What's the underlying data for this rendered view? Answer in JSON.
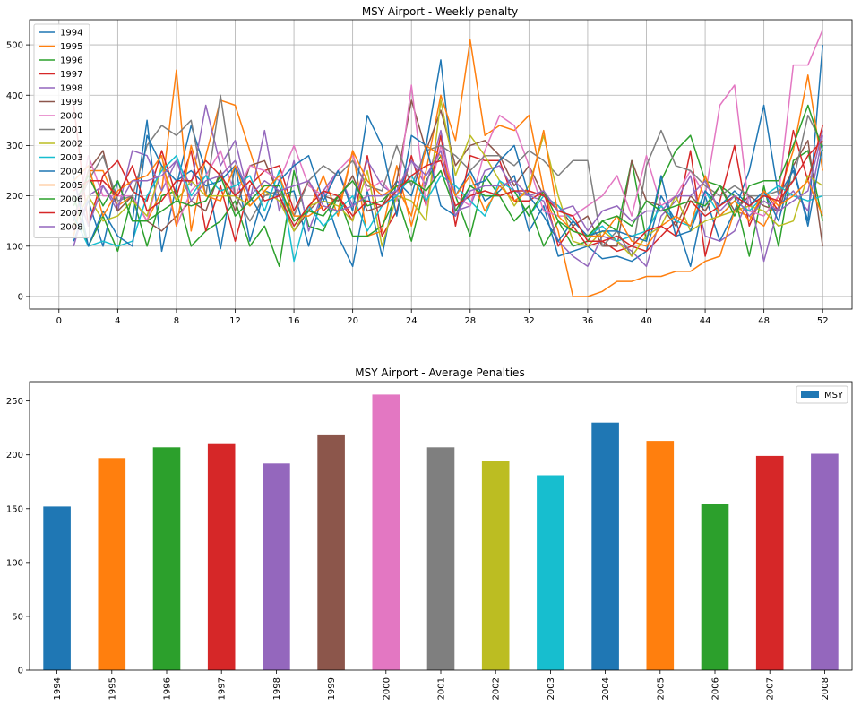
{
  "colors": [
    "#1f77b4",
    "#ff7f0e",
    "#2ca02c",
    "#d62728",
    "#9467bd",
    "#8c564b",
    "#e377c2",
    "#7f7f7f",
    "#bcbd22",
    "#17becf"
  ],
  "chart_data": [
    {
      "type": "line",
      "title": "MSY Airport - Weekly penalty",
      "xlabel": "",
      "ylabel": "",
      "xlim": [
        -2,
        54
      ],
      "ylim": [
        -25,
        550
      ],
      "xticks": [
        0,
        4,
        8,
        12,
        16,
        20,
        24,
        28,
        32,
        36,
        40,
        44,
        48,
        52
      ],
      "yticks": [
        0,
        100,
        200,
        300,
        400,
        500
      ],
      "grid": true,
      "legend": "top-left",
      "x": [
        1,
        2,
        3,
        4,
        5,
        6,
        7,
        8,
        9,
        10,
        11,
        12,
        13,
        14,
        15,
        16,
        17,
        18,
        19,
        20,
        21,
        22,
        23,
        24,
        25,
        26,
        27,
        28,
        29,
        30,
        31,
        32,
        33,
        34,
        35,
        36,
        37,
        38,
        39,
        40,
        41,
        42,
        43,
        44,
        45,
        46,
        47,
        48,
        49,
        50,
        51,
        52
      ],
      "series": [
        {
          "name": "1994",
          "values": [
            110,
            190,
            100,
            230,
            150,
            350,
            90,
            220,
            340,
            250,
            95,
            260,
            110,
            210,
            200,
            210,
            100,
            210,
            120,
            60,
            210,
            80,
            230,
            200,
            300,
            470,
            200,
            250,
            190,
            210,
            240,
            130,
            180,
            80,
            90,
            100,
            75,
            80,
            70,
            90,
            200,
            150,
            60,
            200,
            110,
            170,
            250,
            380,
            200,
            250,
            150,
            500
          ]
        },
        {
          "name": "1995",
          "values": [
            120,
            250,
            250,
            180,
            200,
            150,
            210,
            450,
            130,
            280,
            390,
            380,
            290,
            200,
            210,
            150,
            170,
            240,
            160,
            290,
            120,
            130,
            260,
            140,
            250,
            400,
            310,
            510,
            320,
            340,
            330,
            360,
            210,
            130,
            0,
            0,
            10,
            30,
            30,
            40,
            40,
            50,
            50,
            70,
            80,
            170,
            160,
            140,
            200,
            290,
            440,
            250
          ]
        },
        {
          "name": "1996",
          "values": [
            200,
            100,
            160,
            90,
            200,
            100,
            200,
            210,
            100,
            130,
            150,
            190,
            100,
            140,
            60,
            250,
            140,
            130,
            200,
            120,
            120,
            140,
            200,
            110,
            230,
            280,
            200,
            120,
            240,
            200,
            150,
            180,
            100,
            150,
            100,
            110,
            150,
            130,
            270,
            110,
            230,
            290,
            320,
            230,
            220,
            200,
            80,
            220,
            100,
            270,
            290,
            150
          ]
        },
        {
          "name": "1997",
          "values": [
            380,
            140,
            240,
            270,
            210,
            190,
            290,
            200,
            290,
            130,
            220,
            110,
            220,
            250,
            260,
            170,
            230,
            170,
            200,
            150,
            280,
            120,
            170,
            280,
            180,
            320,
            140,
            280,
            270,
            270,
            190,
            190,
            210,
            100,
            140,
            100,
            110,
            90,
            100,
            90,
            120,
            150,
            290,
            80,
            190,
            300,
            140,
            210,
            170,
            330,
            230,
            340
          ]
        },
        {
          "name": "1998",
          "values": [
            100,
            200,
            220,
            170,
            290,
            280,
            210,
            270,
            220,
            380,
            260,
            310,
            190,
            330,
            170,
            270,
            130,
            210,
            250,
            180,
            270,
            220,
            200,
            270,
            220,
            330,
            170,
            180,
            250,
            260,
            210,
            200,
            190,
            110,
            80,
            60,
            120,
            110,
            90,
            60,
            160,
            190,
            240,
            120,
            110,
            130,
            200,
            70,
            180,
            210,
            170,
            320
          ]
        },
        {
          "name": "1999",
          "values": [
            150,
            250,
            290,
            170,
            200,
            150,
            130,
            160,
            190,
            170,
            250,
            170,
            260,
            270,
            200,
            130,
            170,
            200,
            190,
            240,
            170,
            180,
            230,
            390,
            290,
            370,
            260,
            300,
            310,
            280,
            220,
            260,
            200,
            180,
            140,
            160,
            100,
            100,
            270,
            190,
            180,
            140,
            200,
            170,
            220,
            170,
            200,
            180,
            170,
            260,
            310,
            100
          ]
        },
        {
          "name": "2000",
          "values": [
            130,
            280,
            200,
            200,
            200,
            150,
            260,
            140,
            210,
            240,
            290,
            200,
            260,
            250,
            230,
            300,
            220,
            200,
            250,
            280,
            210,
            230,
            190,
            420,
            180,
            300,
            200,
            180,
            290,
            360,
            340,
            260,
            170,
            160,
            160,
            180,
            200,
            240,
            160,
            280,
            180,
            200,
            250,
            200,
            380,
            420,
            170,
            160,
            200,
            460,
            460,
            530
          ]
        },
        {
          "name": "2001",
          "values": [
            160,
            230,
            280,
            190,
            200,
            300,
            340,
            320,
            350,
            200,
            400,
            200,
            150,
            200,
            210,
            160,
            230,
            260,
            240,
            270,
            220,
            210,
            300,
            220,
            290,
            300,
            280,
            250,
            280,
            280,
            260,
            290,
            270,
            240,
            270,
            270,
            100,
            130,
            80,
            260,
            330,
            260,
            250,
            220,
            200,
            220,
            200,
            200,
            210,
            230,
            360,
            300
          ]
        },
        {
          "name": "2002",
          "values": [
            140,
            200,
            150,
            160,
            190,
            160,
            260,
            190,
            230,
            200,
            200,
            200,
            180,
            210,
            190,
            130,
            180,
            190,
            180,
            150,
            250,
            100,
            200,
            190,
            150,
            390,
            240,
            320,
            280,
            230,
            180,
            220,
            320,
            200,
            110,
            100,
            130,
            110,
            80,
            120,
            140,
            200,
            130,
            150,
            160,
            170,
            180,
            170,
            140,
            150,
            240,
            220
          ]
        },
        {
          "name": "2003",
          "values": [
            160,
            100,
            110,
            100,
            110,
            200,
            250,
            280,
            200,
            240,
            210,
            220,
            240,
            170,
            250,
            70,
            180,
            140,
            170,
            200,
            130,
            180,
            200,
            240,
            190,
            240,
            220,
            190,
            160,
            230,
            210,
            160,
            200,
            180,
            150,
            120,
            140,
            110,
            120,
            130,
            180,
            150,
            140,
            210,
            160,
            190,
            170,
            200,
            220,
            200,
            190,
            200
          ]
        },
        {
          "name": "2004",
          "values": [
            240,
            100,
            170,
            120,
            100,
            320,
            260,
            230,
            250,
            220,
            230,
            260,
            200,
            150,
            230,
            260,
            280,
            190,
            250,
            170,
            360,
            300,
            160,
            320,
            300,
            180,
            160,
            220,
            230,
            270,
            300,
            200,
            160,
            110,
            150,
            120,
            130,
            130,
            120,
            110,
            240,
            120,
            130,
            210,
            180,
            210,
            180,
            210,
            150,
            260,
            140,
            300
          ]
        },
        {
          "name": "2005",
          "values": [
            230,
            260,
            160,
            210,
            230,
            240,
            280,
            140,
            300,
            200,
            190,
            260,
            180,
            210,
            240,
            160,
            160,
            180,
            170,
            290,
            230,
            200,
            220,
            160,
            300,
            280,
            200,
            240,
            170,
            220,
            190,
            210,
            330,
            160,
            130,
            120,
            120,
            160,
            110,
            100,
            140,
            160,
            140,
            240,
            160,
            190,
            150,
            210,
            180,
            200,
            230,
            160
          ]
        },
        {
          "name": "2006",
          "values": [
            180,
            240,
            180,
            230,
            150,
            150,
            170,
            190,
            180,
            190,
            240,
            160,
            190,
            220,
            220,
            150,
            170,
            160,
            200,
            230,
            180,
            190,
            220,
            230,
            210,
            250,
            170,
            220,
            200,
            200,
            210,
            160,
            210,
            150,
            130,
            120,
            150,
            160,
            140,
            190,
            170,
            180,
            190,
            180,
            220,
            160,
            220,
            230,
            230,
            300,
            380,
            290
          ]
        },
        {
          "name": "2007",
          "values": [
            210,
            230,
            230,
            200,
            260,
            170,
            190,
            230,
            230,
            270,
            240,
            200,
            230,
            190,
            200,
            140,
            180,
            210,
            200,
            160,
            190,
            180,
            210,
            240,
            260,
            270,
            180,
            200,
            210,
            200,
            210,
            210,
            200,
            170,
            160,
            110,
            110,
            120,
            100,
            130,
            140,
            120,
            190,
            160,
            180,
            200,
            180,
            200,
            190,
            230,
            280,
            310
          ]
        },
        {
          "name": "2008",
          "values": [
            230,
            140,
            220,
            180,
            230,
            230,
            240,
            270,
            190,
            230,
            240,
            270,
            200,
            230,
            210,
            220,
            230,
            180,
            170,
            180,
            200,
            200,
            210,
            270,
            240,
            290,
            160,
            210,
            220,
            220,
            230,
            200,
            210,
            170,
            180,
            130,
            170,
            180,
            150,
            170,
            170,
            200,
            200,
            230,
            170,
            200,
            160,
            190,
            170,
            190,
            210,
            330
          ]
        }
      ]
    },
    {
      "type": "bar",
      "title": "MSY Airport - Average Penalties",
      "xlabel": "",
      "ylabel": "",
      "ylim": [
        0,
        268
      ],
      "yticks": [
        0,
        50,
        100,
        150,
        200,
        250
      ],
      "grid": false,
      "legend": "top-right",
      "categories": [
        "1994",
        "1995",
        "1996",
        "1997",
        "1998",
        "1999",
        "2000",
        "2001",
        "2002",
        "2003",
        "2004",
        "2005",
        "2006",
        "2007",
        "2008"
      ],
      "series": [
        {
          "name": "MSY",
          "values": [
            152,
            197,
            207,
            210,
            192,
            219,
            256,
            207,
            194,
            181,
            230,
            213,
            154,
            199,
            201
          ]
        }
      ]
    }
  ]
}
